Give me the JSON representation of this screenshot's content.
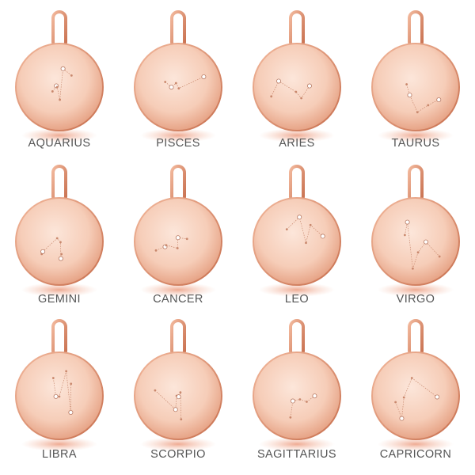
{
  "products": [
    {
      "label": "AQUARIUS"
    },
    {
      "label": "PISCES"
    },
    {
      "label": "ARIES"
    },
    {
      "label": "TAURUS"
    },
    {
      "label": "GEMINI"
    },
    {
      "label": "CANCER"
    },
    {
      "label": "LEO"
    },
    {
      "label": "VIRGO"
    },
    {
      "label": "LIBRA"
    },
    {
      "label": "SCORPIO"
    },
    {
      "label": "SAGITTARIUS"
    },
    {
      "label": "CAPRICORN"
    }
  ]
}
